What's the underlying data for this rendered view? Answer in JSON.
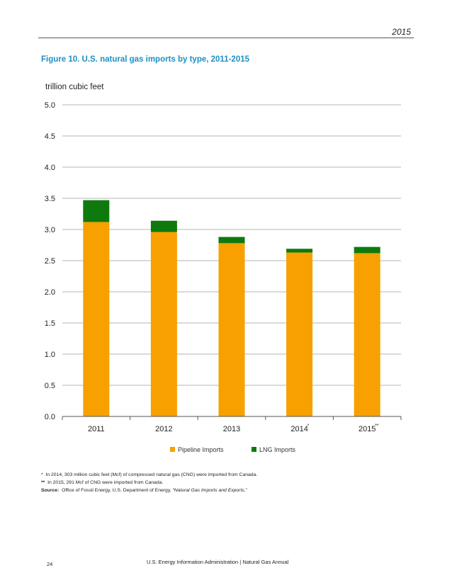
{
  "header": {
    "year": "2015"
  },
  "figure": {
    "title": "Figure 10.  U.S. natural gas imports by type, 2011-2015",
    "unit_label": "trillion cubic feet"
  },
  "chart_data": {
    "type": "bar",
    "stacked": true,
    "categories": [
      "2011",
      "2012",
      "2013",
      "2014",
      "2015"
    ],
    "category_superscripts": [
      "",
      "",
      "",
      "*",
      "**"
    ],
    "series": [
      {
        "name": "Pipeline Imports",
        "values": [
          3.12,
          2.96,
          2.78,
          2.63,
          2.62
        ],
        "color": "#f7a000"
      },
      {
        "name": "LNG Imports",
        "values": [
          0.35,
          0.18,
          0.1,
          0.06,
          0.1
        ],
        "color": "#0e7a0d"
      }
    ],
    "ylim": [
      0,
      5.0
    ],
    "yticks": [
      "0.0",
      "0.5",
      "1.0",
      "1.5",
      "2.0",
      "2.5",
      "3.0",
      "3.5",
      "4.0",
      "4.5",
      "5.0"
    ],
    "ylabel": "trillion cubic feet",
    "xlabel": "",
    "grid": true,
    "legend": "bottom-center"
  },
  "notes": {
    "note1_marker": "*",
    "note1_text": "In 2014, 303 million cubic feet (Mcf) of compressed natural gas (CNG) were imported from Canada.",
    "note2_marker": "**",
    "note2_text": "In 2015, 291 Mcf of CNG were imported from Canada.",
    "source_label": "Source:",
    "source_text": "Office of Fossil Energy, U.S. Department of Energy,",
    "source_title": "“Natural Gas Imports and Exports.”"
  },
  "footer": {
    "page_number": "24",
    "text": "U.S. Energy Information Administration   |   Natural Gas Annual"
  }
}
